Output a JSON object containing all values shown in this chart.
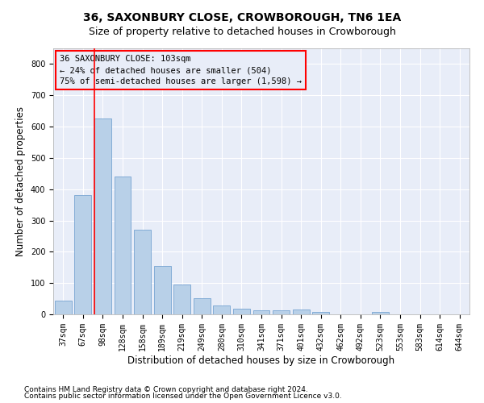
{
  "title": "36, SAXONBURY CLOSE, CROWBOROUGH, TN6 1EA",
  "subtitle": "Size of property relative to detached houses in Crowborough",
  "xlabel": "Distribution of detached houses by size in Crowborough",
  "ylabel": "Number of detached properties",
  "footnote1": "Contains HM Land Registry data © Crown copyright and database right 2024.",
  "footnote2": "Contains public sector information licensed under the Open Government Licence v3.0.",
  "bar_labels": [
    "37sqm",
    "67sqm",
    "98sqm",
    "128sqm",
    "158sqm",
    "189sqm",
    "219sqm",
    "249sqm",
    "280sqm",
    "310sqm",
    "341sqm",
    "371sqm",
    "401sqm",
    "432sqm",
    "462sqm",
    "492sqm",
    "523sqm",
    "553sqm",
    "583sqm",
    "614sqm",
    "644sqm"
  ],
  "bar_values": [
    45,
    382,
    625,
    440,
    270,
    155,
    96,
    52,
    29,
    17,
    12,
    12,
    15,
    8,
    0,
    0,
    8,
    0,
    0,
    0,
    0
  ],
  "bar_color": "#b8d0e8",
  "bar_edge_color": "#6699cc",
  "ylim": [
    0,
    850
  ],
  "yticks": [
    0,
    100,
    200,
    300,
    400,
    500,
    600,
    700,
    800
  ],
  "property_label": "36 SAXONBURY CLOSE: 103sqm",
  "annotation_smaller": "← 24% of detached houses are smaller (504)",
  "annotation_larger": "75% of semi-detached houses are larger (1,598) →",
  "vline_bar_index": 2,
  "fig_bg_color": "#ffffff",
  "plot_bg_color": "#e8edf8",
  "grid_color": "#ffffff",
  "title_fontsize": 10,
  "subtitle_fontsize": 9,
  "axis_label_fontsize": 8.5,
  "tick_fontsize": 7,
  "footnote_fontsize": 6.5,
  "annotation_fontsize": 7.5
}
